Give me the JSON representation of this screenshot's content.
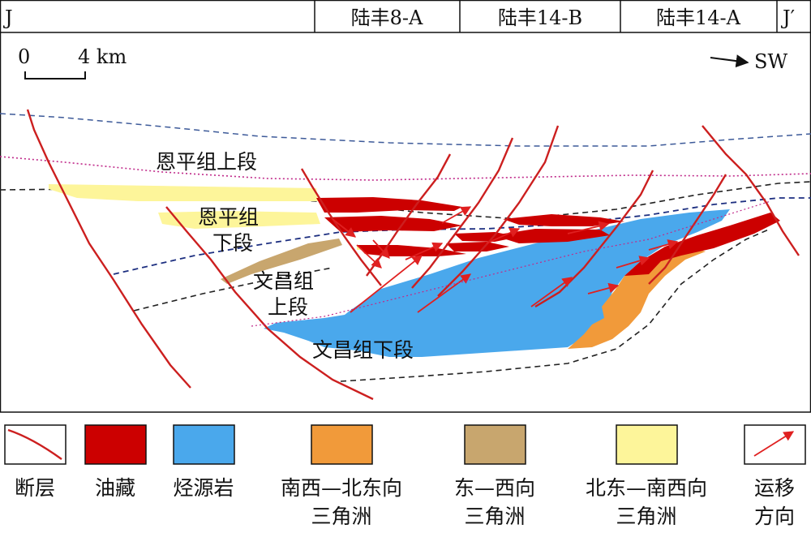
{
  "header": {
    "left_label": "J",
    "right_label": "J′",
    "wells": [
      "陆丰8-A",
      "陆丰14-B",
      "陆丰14-A"
    ]
  },
  "scale": {
    "zero": "0",
    "distance": "4 km"
  },
  "direction": "SW",
  "units": {
    "enping_upper": "恩平组上段",
    "enping_lower_1": "恩平组",
    "enping_lower_2": "下段",
    "wenchang_upper_1": "文昌组",
    "wenchang_upper_2": "上段",
    "wenchang_lower": "文昌组下段"
  },
  "legend": [
    {
      "key": "fault",
      "label": "断层",
      "label2": "",
      "color": "#cc1f1f"
    },
    {
      "key": "oil",
      "label": "油藏",
      "label2": "",
      "color": "#cc0000"
    },
    {
      "key": "source",
      "label": "烃源岩",
      "label2": "",
      "color": "#4aa8ec"
    },
    {
      "key": "sw_ne_delta",
      "label": "南西—北东向",
      "label2": "三角洲",
      "color": "#f19a3a"
    },
    {
      "key": "ew_delta",
      "label": "东—西向",
      "label2": "三角洲",
      "color": "#c8a66e"
    },
    {
      "key": "ne_sw_delta",
      "label": "北东—南西向",
      "label2": "三角洲",
      "color": "#fdf59a"
    },
    {
      "key": "migration",
      "label": "运移",
      "label2": "方向",
      "color": "#e02020"
    }
  ]
}
